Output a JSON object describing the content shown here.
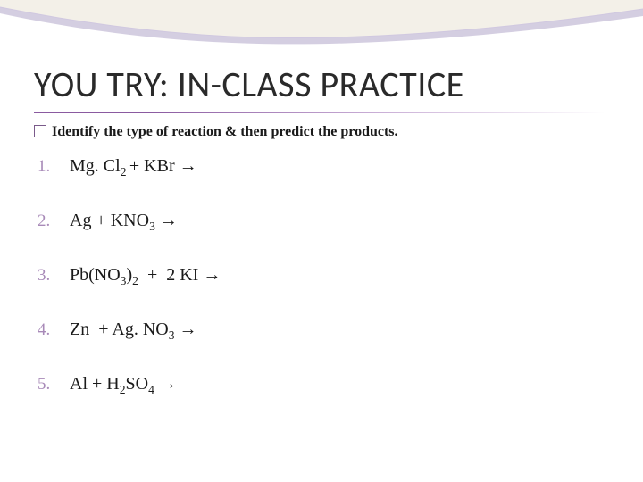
{
  "title": "YOU TRY: IN-CLASS PRACTICE",
  "instruction": "Identify the type of reaction & then predict the products.",
  "accent_color": "#8a5aa0",
  "number_color": "#a88ab8",
  "text_color": "#1a1a1a",
  "title_font": "Calibri",
  "body_font": "Georgia",
  "title_fontsize": 40,
  "instruction_fontsize": 16,
  "item_fontsize": 20,
  "items": [
    {
      "n": "1.",
      "formula_html": "Mg. Cl<sub>2 </sub>+ KBr <span class='arrow'>→</span>"
    },
    {
      "n": "2.",
      "formula_html": "Ag + KNO<sub>3</sub> <span class='arrow'>→</span>"
    },
    {
      "n": "3.",
      "formula_html": "Pb(NO<sub>3</sub>)<sub>2</sub> &nbsp;+&nbsp; 2 KI <span class='arrow'>→</span>"
    },
    {
      "n": "4.",
      "formula_html": "Zn&nbsp; + Ag. NO<sub>3</sub> <span class='arrow'>→</span>"
    },
    {
      "n": "5.",
      "formula_html": "Al + H<sub>2</sub>SO<sub>4</sub> <span class='arrow'>→</span>"
    }
  ],
  "swoosh": {
    "outer_fill": "#8573a8",
    "inner_fill": "#f3f0e8",
    "edge_stroke": "#d0c8e0"
  }
}
